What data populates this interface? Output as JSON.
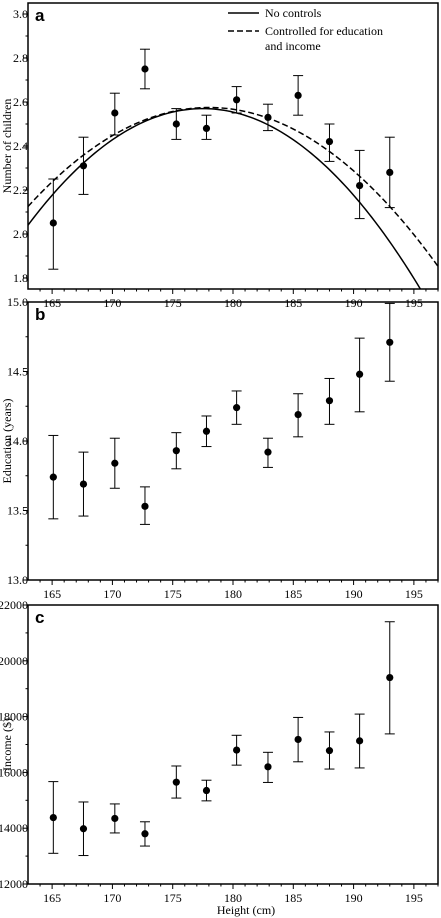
{
  "panels": [
    {
      "letter": "a",
      "ylabel": "Number of children",
      "ylim": [
        1.75,
        3.05
      ],
      "yticks": [
        1.8,
        2.0,
        2.2,
        2.4,
        2.6,
        2.8,
        3.0
      ],
      "ytick_labels": [
        "1.8",
        "2.0",
        "2.2",
        "2.4",
        "2.6",
        "2.8",
        "3.0"
      ],
      "legend": [
        "No controls",
        "Controlled for education",
        "and income"
      ]
    },
    {
      "letter": "b",
      "ylabel": "Education (years)",
      "ylim": [
        13.0,
        15.0
      ],
      "yticks": [
        13.0,
        13.5,
        14.0,
        14.5,
        15.0
      ],
      "ytick_labels": [
        "13.0",
        "13.5",
        "14.0",
        "14.5",
        "15.0"
      ]
    },
    {
      "letter": "c",
      "ylabel": "Income ($)",
      "ylim": [
        12000,
        22000
      ],
      "yticks": [
        12000,
        14000,
        16000,
        18000,
        20000,
        22000
      ],
      "ytick_labels": [
        "12000",
        "14000",
        "16000",
        "18000",
        "20000",
        "22000"
      ]
    }
  ],
  "xlabel": "Height (cm)",
  "xlim": [
    163,
    197
  ],
  "xticks": [
    165,
    170,
    175,
    180,
    185,
    190,
    195
  ],
  "xtick_labels": [
    "165",
    "170",
    "175",
    "180",
    "185",
    "190",
    "195"
  ],
  "chart_data": [
    {
      "type": "scatter",
      "panel": "a",
      "ylabel": "Number of children",
      "xlabel": "",
      "ylim": [
        1.75,
        3.05
      ],
      "x": [
        165.1,
        167.6,
        170.2,
        172.7,
        175.3,
        177.8,
        180.3,
        182.9,
        185.4,
        188.0,
        190.5,
        193.0
      ],
      "y": [
        2.05,
        2.31,
        2.55,
        2.75,
        2.5,
        2.48,
        2.61,
        2.53,
        2.63,
        2.42,
        2.22,
        2.28
      ],
      "err_low": [
        1.84,
        2.18,
        2.45,
        2.66,
        2.43,
        2.43,
        2.55,
        2.47,
        2.54,
        2.33,
        2.07,
        2.12
      ],
      "err_high": [
        2.25,
        2.44,
        2.64,
        2.84,
        2.57,
        2.54,
        2.67,
        2.59,
        2.72,
        2.5,
        2.38,
        2.44
      ],
      "curves": [
        {
          "name": "No controls",
          "style": "solid",
          "peak_x": 177.5,
          "peak_y": 2.57,
          "curvature": 0.00252
        },
        {
          "name": "Controlled for education and income",
          "style": "dashed",
          "peak_x": 178.0,
          "peak_y": 2.575,
          "curvature": 0.002
        }
      ]
    },
    {
      "type": "scatter",
      "panel": "b",
      "ylabel": "Education (years)",
      "xlabel": "",
      "ylim": [
        13.0,
        15.0
      ],
      "x": [
        165.1,
        167.6,
        170.2,
        172.7,
        175.3,
        177.8,
        180.3,
        182.9,
        185.4,
        188.0,
        190.5,
        193.0
      ],
      "y": [
        13.74,
        13.69,
        13.84,
        13.53,
        13.93,
        14.07,
        14.24,
        13.92,
        14.19,
        14.29,
        14.48,
        14.71
      ],
      "err_low": [
        13.44,
        13.46,
        13.66,
        13.4,
        13.8,
        13.96,
        14.12,
        13.81,
        14.03,
        14.12,
        14.21,
        14.43
      ],
      "err_high": [
        14.04,
        13.92,
        14.02,
        13.67,
        14.06,
        14.18,
        14.36,
        14.02,
        14.34,
        14.45,
        14.74,
        14.99
      ]
    },
    {
      "type": "scatter",
      "panel": "c",
      "ylabel": "Income ($)",
      "xlabel": "Height (cm)",
      "ylim": [
        12000,
        22000
      ],
      "x": [
        165.1,
        167.6,
        170.2,
        172.7,
        175.3,
        177.8,
        180.3,
        182.9,
        185.4,
        188.0,
        190.5,
        193.0
      ],
      "y": [
        14380,
        13980,
        14350,
        13800,
        15650,
        15350,
        16800,
        16200,
        17180,
        16780,
        17130,
        19400
      ],
      "err_low": [
        13100,
        13020,
        13830,
        13360,
        15080,
        14980,
        16260,
        15640,
        16380,
        16120,
        16160,
        17380
      ],
      "err_high": [
        15670,
        14940,
        14870,
        14230,
        16230,
        15720,
        17330,
        16720,
        17970,
        17450,
        18090,
        21400
      ]
    }
  ]
}
